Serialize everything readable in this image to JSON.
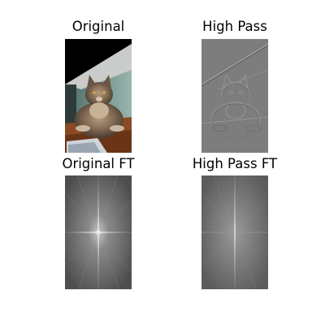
{
  "figure": {
    "panels": [
      {
        "title": "Original",
        "image": "photo-of-long-haired-tabby-cat-on-wooden-surface"
      },
      {
        "title": "High Pass",
        "image": "high-pass-filtered-cat-edges-on-gray"
      },
      {
        "title": "Original FT",
        "image": "fourier-spectrum-magnitude-with-bright-center-cross"
      },
      {
        "title": "High Pass FT",
        "image": "fourier-spectrum-magnitude-high-pass"
      }
    ]
  }
}
